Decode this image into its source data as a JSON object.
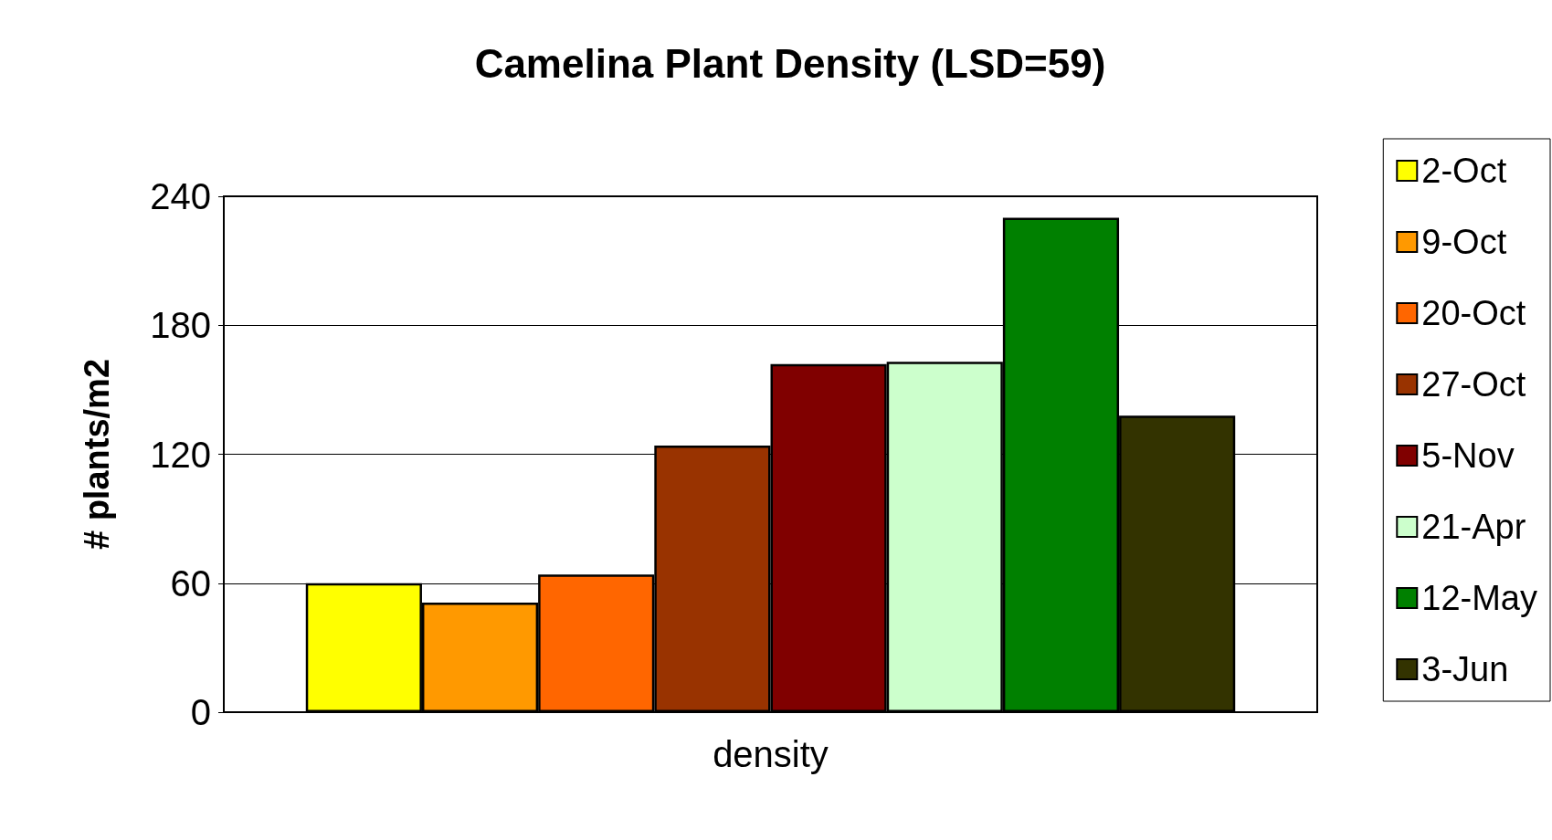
{
  "chart_data": {
    "type": "bar",
    "title": "Camelina Plant Density (LSD=59)",
    "ylabel": "# plants/m2",
    "categories": [
      "density"
    ],
    "series": [
      {
        "name": "2-Oct",
        "color": "#ffff00",
        "values": [
          60
        ]
      },
      {
        "name": "9-Oct",
        "color": "#ff9900",
        "values": [
          51
        ]
      },
      {
        "name": "20-Oct",
        "color": "#ff6600",
        "values": [
          64
        ]
      },
      {
        "name": "27-Oct",
        "color": "#993300",
        "values": [
          124
        ]
      },
      {
        "name": "5-Nov",
        "color": "#800000",
        "values": [
          162
        ]
      },
      {
        "name": "21-Apr",
        "color": "#ccffcc",
        "values": [
          163
        ]
      },
      {
        "name": "12-May",
        "color": "#008000",
        "values": [
          230
        ]
      },
      {
        "name": "3-Jun",
        "color": "#333300",
        "values": [
          138
        ]
      }
    ],
    "ylim": [
      0,
      240
    ],
    "yticks": [
      0,
      60,
      120,
      180,
      240
    ],
    "grid": "y",
    "legend": "right"
  }
}
